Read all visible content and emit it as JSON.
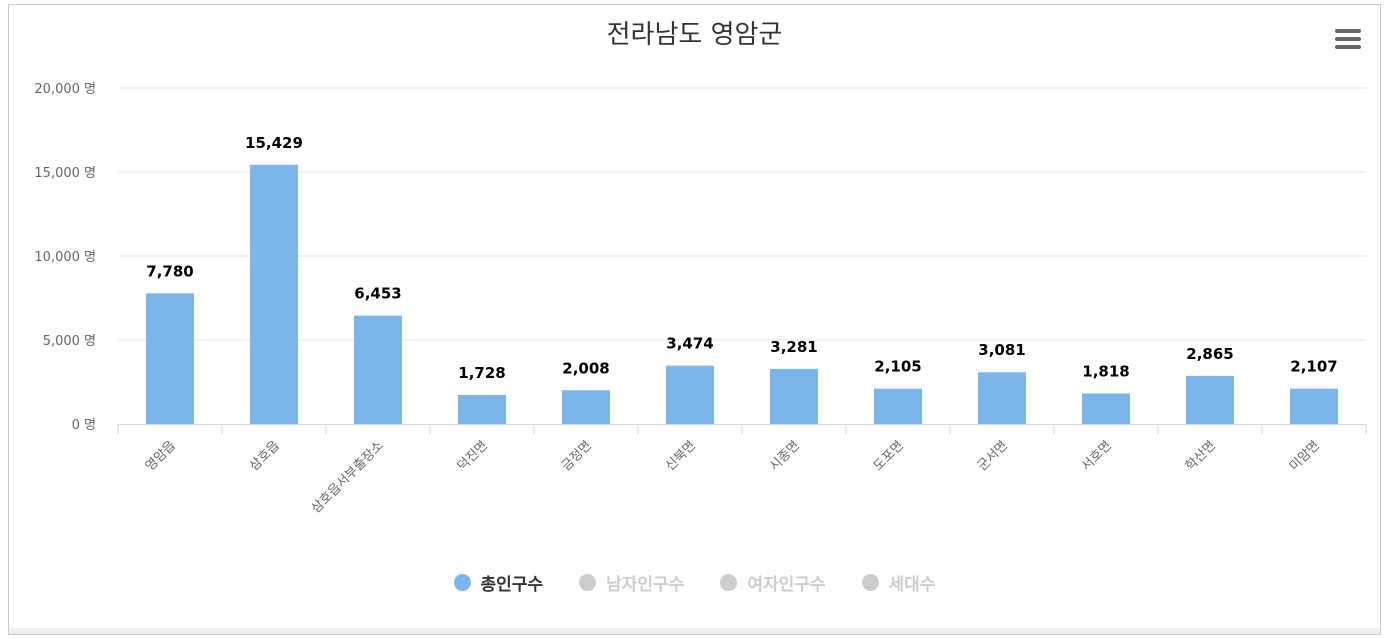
{
  "chart_data": {
    "type": "bar",
    "title": "전라남도 영암군",
    "categories": [
      "영암읍",
      "삼호읍",
      "삼호읍서부출장소",
      "덕진면",
      "금정면",
      "신북면",
      "시종면",
      "도포면",
      "군서면",
      "서호면",
      "학산면",
      "미암면"
    ],
    "series": [
      {
        "name": "총인구수",
        "values": [
          7780,
          15429,
          6453,
          1728,
          2008,
          3474,
          3281,
          2105,
          3081,
          1818,
          2865,
          2107
        ]
      }
    ],
    "value_labels": [
      "7,780",
      "15,429",
      "6,453",
      "1,728",
      "2,008",
      "3,474",
      "3,281",
      "2,105",
      "3,081",
      "1,818",
      "2,865",
      "2,107"
    ],
    "ylim": [
      0,
      20000
    ],
    "yticks": [
      0,
      5000,
      10000,
      15000,
      20000
    ],
    "ytick_labels": [
      "0 명",
      "5,000 명",
      "10,000 명",
      "15,000 명",
      "20,000 명"
    ],
    "xlabel": "",
    "ylabel": "",
    "grid": true,
    "legend_position": "bottom"
  },
  "legend": [
    {
      "label": "총인구수",
      "active": true
    },
    {
      "label": "남자인구수",
      "active": false
    },
    {
      "label": "여자인구수",
      "active": false
    },
    {
      "label": "세대수",
      "active": false
    }
  ],
  "colors": {
    "bar": "#7cb5ec",
    "inactive": "#cccccc",
    "active_text": "#333333",
    "inactive_text": "#cccccc",
    "grid": "#e6e6e6",
    "axis": "#ccd6eb",
    "tick_text": "#666666"
  },
  "menu": {
    "icon": "hamburger-menu-icon"
  }
}
